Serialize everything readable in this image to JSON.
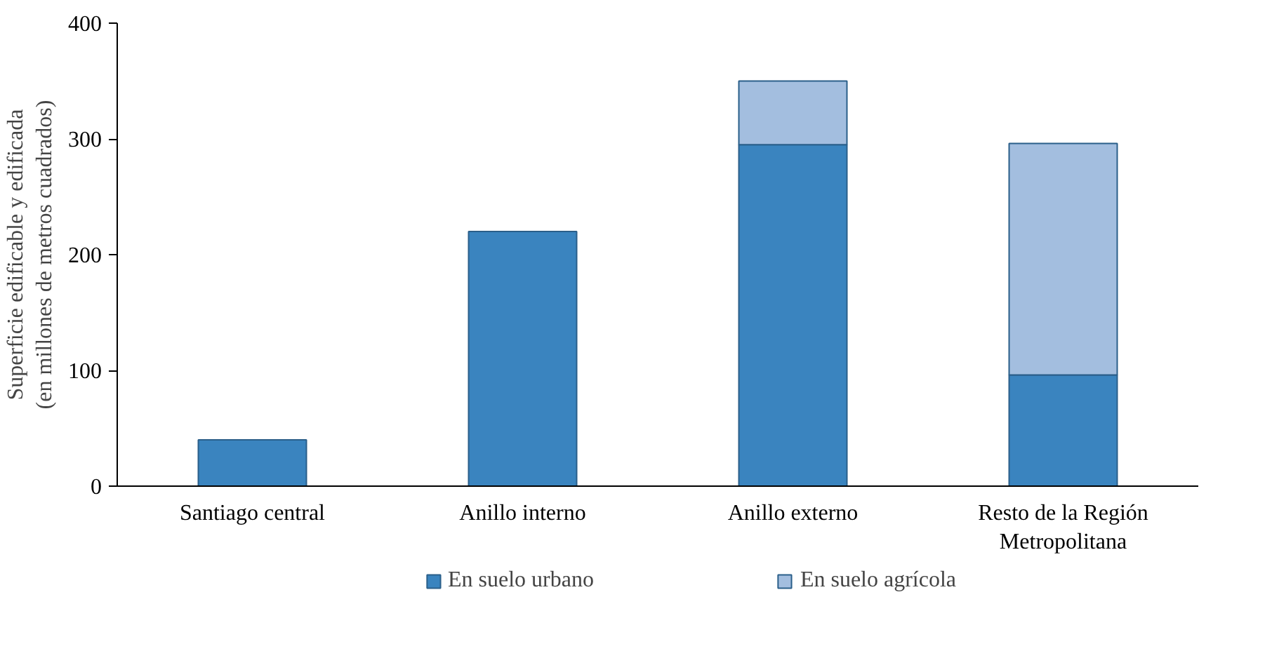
{
  "chart_data": {
    "type": "bar",
    "stacked": true,
    "ylabel": "Superficie edificable y edificada\n(en millones de metros cuadrados)",
    "categories": [
      "Santiago central",
      "Anillo interno",
      "Anillo externo",
      "Resto de la Región Metropolitana"
    ],
    "series": [
      {
        "name": "En suelo urbano",
        "color": "#3a84bf",
        "values": [
          40,
          220,
          295,
          96
        ]
      },
      {
        "name": "En suelo agrícola",
        "color": "#a3bedf",
        "values": [
          0,
          0,
          55,
          200
        ]
      }
    ],
    "ylim": [
      0,
      400
    ],
    "yticks": [
      0,
      100,
      200,
      300,
      400
    ],
    "grid": false,
    "legend": "bottom"
  }
}
